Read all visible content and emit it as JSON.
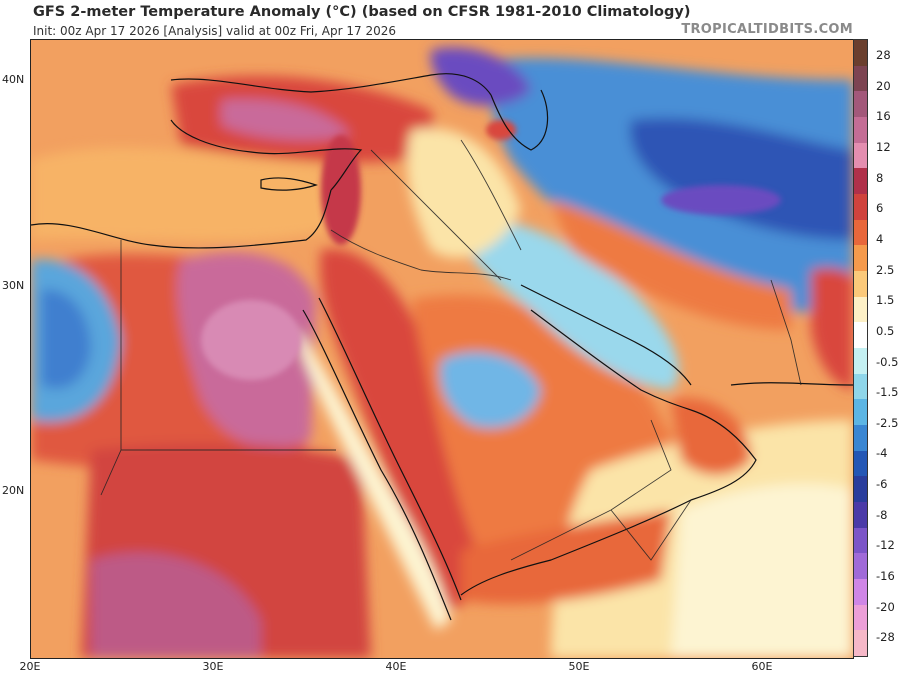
{
  "header": {
    "title": "GFS 2-meter Temperature Anomaly (°C) (based on CFSR 1981-2010 Climatology)",
    "subtitle": "Init: 00z Apr 17 2026   [Analysis]   valid at 00z Fri, Apr 17 2026",
    "brand": "TROPICALTIDBITS.COM"
  },
  "axes": {
    "lat_labels": [
      "40N",
      "30N",
      "20N"
    ],
    "lon_labels": [
      "20E",
      "30E",
      "40E",
      "50E",
      "60E"
    ]
  },
  "colorbar": {
    "labels": [
      "28",
      "20",
      "16",
      "12",
      "8",
      "6",
      "4",
      "2.5",
      "1.5",
      "0.5",
      "-0.5",
      "-1.5",
      "-2.5",
      "-4",
      "-6",
      "-8",
      "-12",
      "-16",
      "-20",
      "-28"
    ],
    "colors": [
      "#6b3f2e",
      "#7d4452",
      "#a3587a",
      "#c46d95",
      "#e48eb0",
      "#b0304a",
      "#d0433d",
      "#e8673b",
      "#f59a4c",
      "#fbc97a",
      "#fdf0c6",
      "#ffffff",
      "#c4f0f2",
      "#8fd6ea",
      "#5cb5e4",
      "#3a86d2",
      "#2457b5",
      "#2a3d9c",
      "#4b3aa8",
      "#7c55c8",
      "#a06ad8",
      "#cf86e6",
      "#ec9fd8",
      "#f6b8c8"
    ]
  },
  "map_colors": {
    "base": "#f2a060",
    "hot_red": "#d9463e",
    "hot_deep": "#b83248",
    "pink": "#c96a9a",
    "orange": "#ee7a42",
    "light_orange": "#f7b366",
    "cream": "#fbe4a8",
    "pale": "#fdf4d2",
    "sky": "#9ad8ec",
    "blue": "#4a8fd6",
    "deep_blue": "#2f55b5",
    "purple": "#6a4cc0"
  }
}
